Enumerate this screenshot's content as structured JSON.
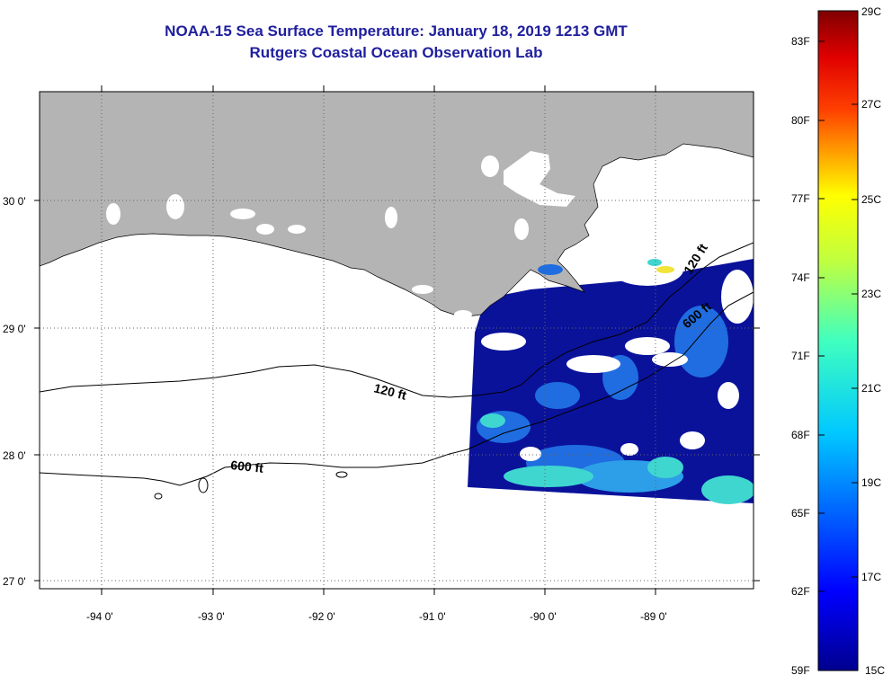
{
  "title": {
    "line1": "NOAA-15 Sea Surface Temperature:  January 18, 2019 1213 GMT",
    "line2": "Rutgers Coastal Ocean Observation Lab"
  },
  "map": {
    "x_ticks": [
      "-94 0'",
      "-93 0'",
      "-92 0'",
      "-91 0'",
      "-90 0'",
      "-89 0'"
    ],
    "y_ticks": [
      "30 0'",
      "29 0'",
      "28 0'",
      "27 0'"
    ],
    "contours": [
      "120 ft",
      "600 ft",
      "120 ft",
      "600 ft"
    ],
    "colors": {
      "land": "#b4b4b4",
      "cloud": "#ffffff",
      "sst_cold": "#0a129a",
      "sst_mid": "#1f6de0",
      "sst_warm": "#3fd6d0"
    }
  },
  "colorbar": {
    "fahrenheit": [
      "83F",
      "80F",
      "77F",
      "74F",
      "71F",
      "68F",
      "65F",
      "62F",
      "59F"
    ],
    "celsius": [
      "29C",
      "27C",
      "25C",
      "23C",
      "21C",
      "19C",
      "17C",
      "15C"
    ]
  }
}
